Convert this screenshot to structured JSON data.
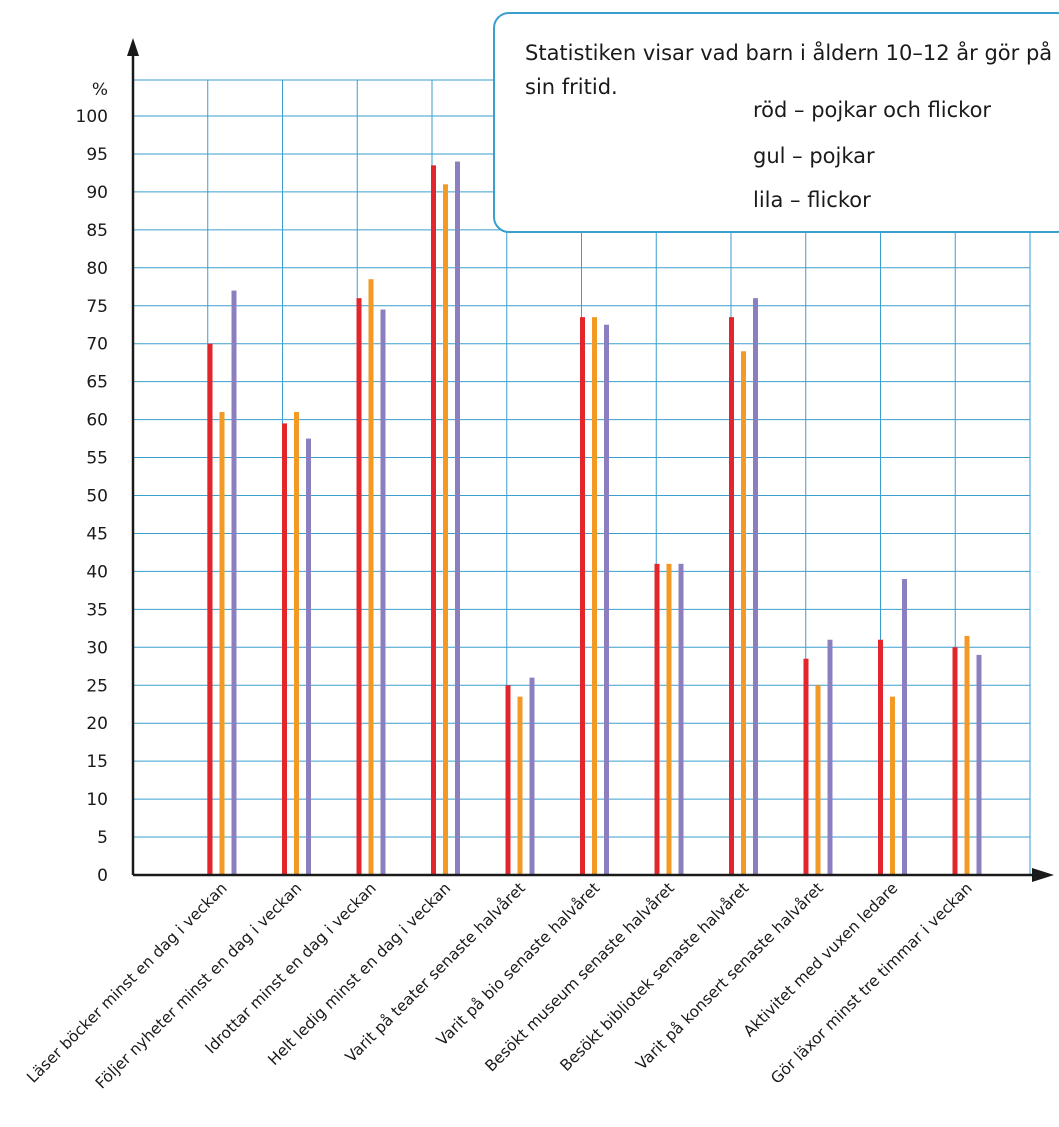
{
  "chart_data": {
    "type": "bar",
    "title": "",
    "xlabel": "",
    "ylabel": "%",
    "ylim": [
      0,
      100
    ],
    "yticks": [
      0,
      5,
      10,
      15,
      20,
      25,
      30,
      35,
      40,
      45,
      50,
      55,
      60,
      65,
      70,
      75,
      80,
      85,
      90,
      95,
      100
    ],
    "grid": true,
    "categories": [
      "Läser böcker minst en dag i veckan",
      "Följer nyheter minst en dag i veckan",
      "Idrottar minst en dag i veckan",
      "Helt ledig minst en dag i veckan",
      "Varit på teater senaste halvåret",
      "Varit på bio senaste halvåret",
      "Besökt museum senaste halvåret",
      "Besökt bibliotek senaste halvåret",
      "Varit på konsert senaste halvåret",
      "Aktivitet med vuxen ledare",
      "Gör läxor minst tre timmar i veckan"
    ],
    "series": [
      {
        "color": "#e3262c",
        "values": [
          70,
          59.5,
          76,
          93.5,
          25,
          73.5,
          41,
          73.5,
          28.5,
          31,
          30
        ]
      },
      {
        "color": "#f39a26",
        "values": [
          61,
          61,
          78.5,
          91,
          23.5,
          73.5,
          41,
          69,
          25,
          23.5,
          31.5
        ]
      },
      {
        "color": "#8c7fc0",
        "values": [
          77,
          57.5,
          74.5,
          94,
          26,
          72.5,
          41,
          76,
          31,
          39,
          29
        ]
      }
    ]
  },
  "legend": {
    "title": "Statistiken visar vad barn i åldern 10–12 år gör på sin fritid.",
    "entries": [
      "röd – pojkar och flickor",
      "gul – pojkar",
      "lila – flickor"
    ]
  },
  "colors": {
    "grid": "#3a9fcf",
    "axis": "#1a1a1a"
  }
}
